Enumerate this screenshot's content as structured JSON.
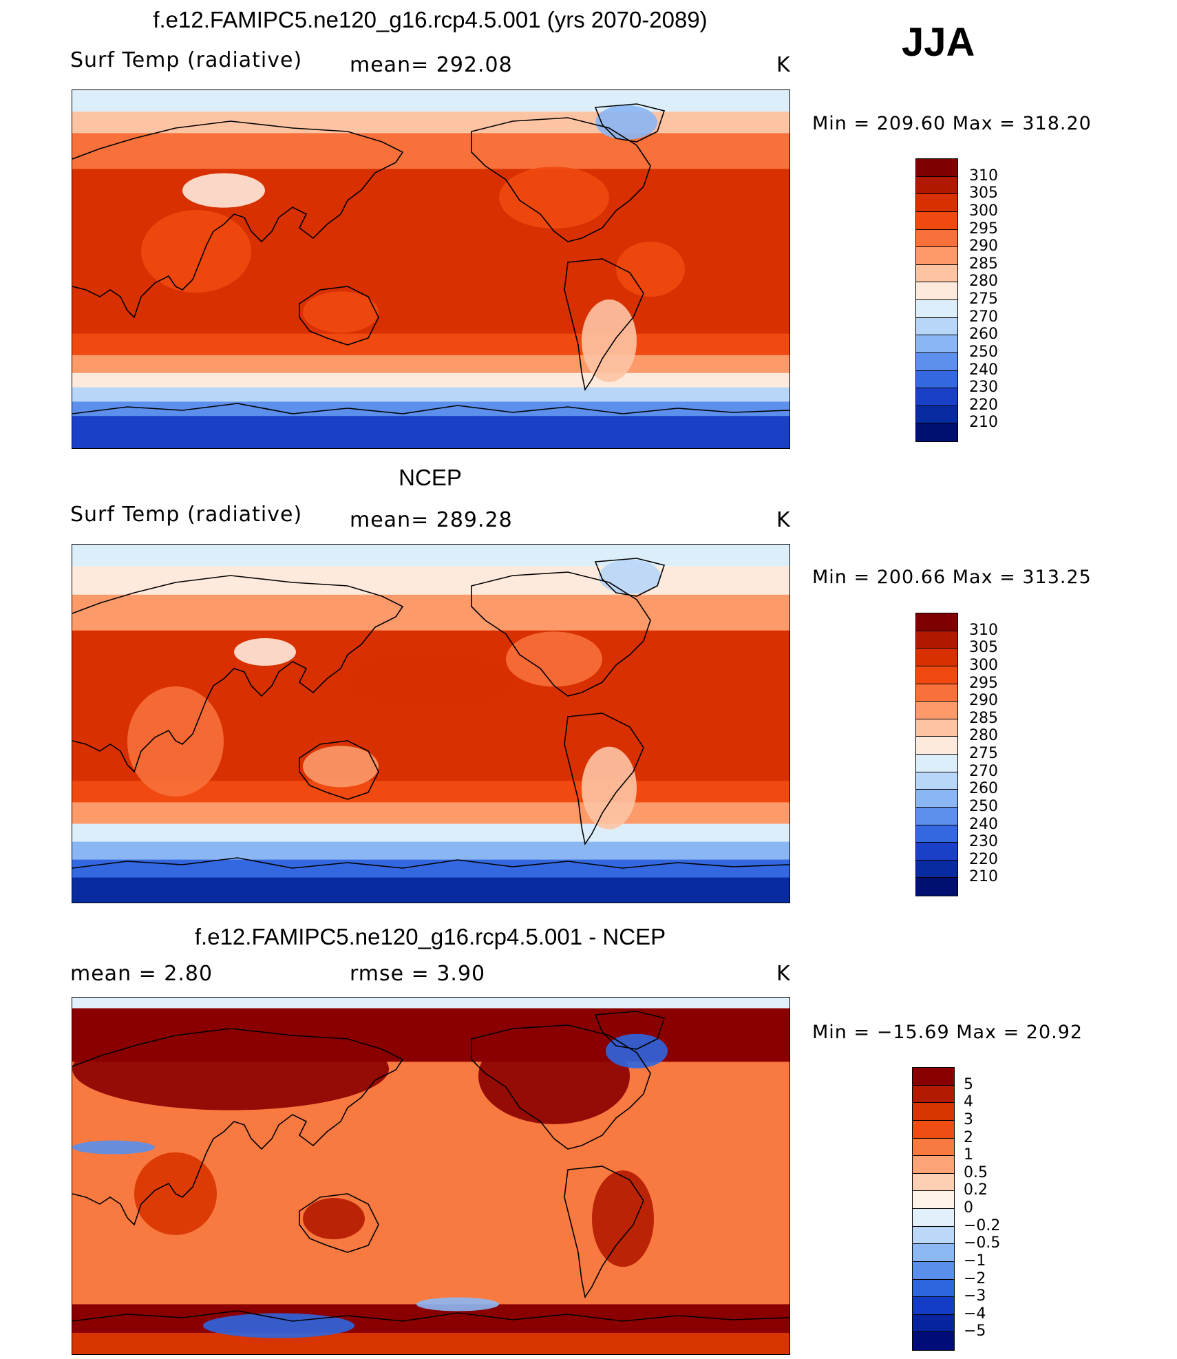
{
  "season": "JJA",
  "panels": [
    {
      "title": "f.e12.FAMIPC5.ne120_g16.rcp4.5.001 (yrs 2070-2089)",
      "variable": "Surf Temp (radiative)",
      "stat1": "mean=  292.08",
      "stat2": "",
      "units": "K",
      "minmax": "Min  =  209.60  Max  =  318.20"
    },
    {
      "title": "NCEP",
      "variable": "Surf Temp (radiative)",
      "stat1": "mean=  289.28",
      "stat2": "",
      "units": "K",
      "minmax": "Min  =  200.66  Max  =  313.25"
    },
    {
      "title": "f.e12.FAMIPC5.ne120_g16.rcp4.5.001 - NCEP",
      "variable": "mean  =     2.80",
      "stat1": "rmse  =     3.90",
      "stat2": "",
      "units": "K",
      "minmax": "Min  = −15.69  Max  =    20.92"
    }
  ],
  "colorbars": {
    "abs": {
      "levels": [
        "310",
        "305",
        "300",
        "295",
        "290",
        "285",
        "280",
        "275",
        "270",
        "260",
        "250",
        "240",
        "230",
        "220",
        "210"
      ],
      "colors": [
        "#7f0000",
        "#b01800",
        "#d83000",
        "#f04a10",
        "#f8703a",
        "#fc9a6a",
        "#fdc4a4",
        "#feeadc",
        "#dceefa",
        "#b8d6f8",
        "#8ab6f4",
        "#5c90ec",
        "#3468e0",
        "#1a40c8",
        "#082ca0",
        "#001070"
      ]
    },
    "diff": {
      "levels": [
        "5",
        "4",
        "3",
        "2",
        "1",
        "0.5",
        "0.2",
        "0",
        "−0.2",
        "−0.5",
        "−1",
        "−2",
        "−3",
        "−4",
        "−5"
      ],
      "colors": [
        "#8a0000",
        "#b41a00",
        "#d83400",
        "#ee4e14",
        "#f87a40",
        "#fca478",
        "#fdd0b4",
        "#fff2e8",
        "#e2f0fc",
        "#bcd8f8",
        "#8cb8f4",
        "#5890ec",
        "#2e66e0",
        "#143cc4",
        "#0624a0",
        "#000c78"
      ]
    }
  }
}
